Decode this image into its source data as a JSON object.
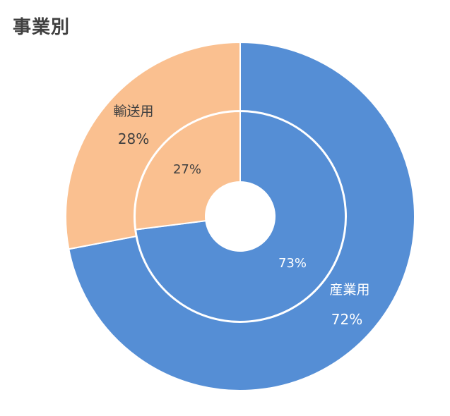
{
  "title": "事業別",
  "chart_data": {
    "type": "pie",
    "variant": "double-donut",
    "rings": [
      {
        "ring": "outer",
        "slices": [
          {
            "label": "産業用",
            "value": 72,
            "value_label": "72%",
            "color": "#558ED5"
          },
          {
            "label": "輸送用",
            "value": 28,
            "value_label": "28%",
            "color": "#FAC090"
          }
        ]
      },
      {
        "ring": "inner",
        "slices": [
          {
            "label": "",
            "value": 73,
            "value_label": "73%",
            "color": "#558ED5"
          },
          {
            "label": "",
            "value": 27,
            "value_label": "27%",
            "color": "#FAC090"
          }
        ]
      }
    ]
  }
}
